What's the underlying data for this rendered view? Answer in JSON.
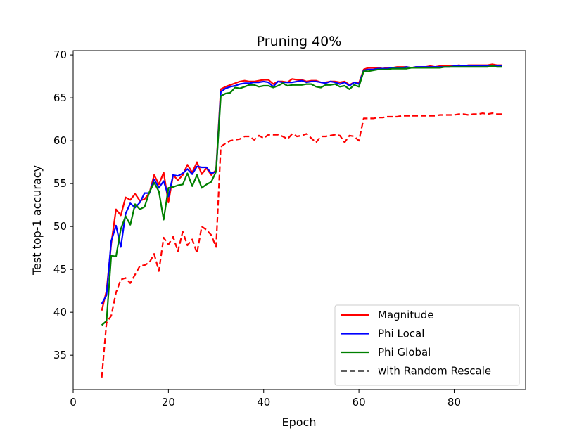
{
  "chart_data": {
    "type": "line",
    "title": "Pruning 40%",
    "xlabel": "Epoch",
    "ylabel": "Test top-1 accuracy",
    "xlim": [
      0,
      95
    ],
    "ylim": [
      31,
      70.5
    ],
    "xticks": [
      0,
      20,
      40,
      60,
      80
    ],
    "yticks": [
      35,
      40,
      45,
      50,
      55,
      60,
      65,
      70
    ],
    "grid": false,
    "legend_position": "lower-right",
    "legend": [
      {
        "label": "Magnitude",
        "color": "#ff0000",
        "style": "solid"
      },
      {
        "label": "Phi Local",
        "color": "#0000ff",
        "style": "solid"
      },
      {
        "label": "Phi Global",
        "color": "#008000",
        "style": "solid"
      },
      {
        "label": "with Random Rescale",
        "color": "#000000",
        "style": "dashed"
      }
    ],
    "x": [
      6,
      7,
      8,
      9,
      10,
      11,
      12,
      13,
      14,
      15,
      16,
      17,
      18,
      19,
      20,
      21,
      22,
      23,
      24,
      25,
      26,
      27,
      28,
      29,
      30,
      31,
      32,
      33,
      34,
      35,
      36,
      37,
      38,
      39,
      40,
      41,
      42,
      43,
      44,
      45,
      46,
      47,
      48,
      49,
      50,
      51,
      52,
      53,
      54,
      55,
      56,
      57,
      58,
      59,
      60,
      61,
      62,
      63,
      64,
      65,
      66,
      67,
      68,
      69,
      70,
      71,
      72,
      73,
      74,
      75,
      76,
      77,
      78,
      79,
      80,
      81,
      82,
      83,
      84,
      85,
      86,
      87,
      88,
      89,
      90
    ],
    "series": [
      {
        "name": "Magnitude",
        "color": "#ff0000",
        "style": "solid",
        "values": [
          40.2,
          42.5,
          48.0,
          52.0,
          51.3,
          53.4,
          53.1,
          53.8,
          53.0,
          53.2,
          53.9,
          56.0,
          54.9,
          56.3,
          52.8,
          56.0,
          55.4,
          56.0,
          57.2,
          56.3,
          57.5,
          56.1,
          56.8,
          56.0,
          56.6,
          66.0,
          66.3,
          66.5,
          66.7,
          66.9,
          67.0,
          66.9,
          66.9,
          67.0,
          67.1,
          67.1,
          66.6,
          66.9,
          66.9,
          66.8,
          67.2,
          67.1,
          67.1,
          66.9,
          67.0,
          67.0,
          66.8,
          66.8,
          66.9,
          66.9,
          66.8,
          66.9,
          66.5,
          66.8,
          66.7,
          68.3,
          68.5,
          68.5,
          68.5,
          68.4,
          68.5,
          68.5,
          68.6,
          68.6,
          68.6,
          68.5,
          68.6,
          68.6,
          68.6,
          68.7,
          68.6,
          68.7,
          68.7,
          68.7,
          68.7,
          68.8,
          68.7,
          68.8,
          68.8,
          68.8,
          68.8,
          68.8,
          68.9,
          68.8,
          68.8
        ]
      },
      {
        "name": "Phi Local",
        "color": "#0000ff",
        "style": "solid",
        "values": [
          41.0,
          42.0,
          48.3,
          50.1,
          47.6,
          51.5,
          52.7,
          52.2,
          52.8,
          53.9,
          53.9,
          55.5,
          54.5,
          55.3,
          53.5,
          56.0,
          55.9,
          56.2,
          56.7,
          56.1,
          57.0,
          56.9,
          56.9,
          56.2,
          56.4,
          65.7,
          66.1,
          66.3,
          66.4,
          66.6,
          66.7,
          66.7,
          66.8,
          66.8,
          66.9,
          66.8,
          66.3,
          66.9,
          66.8,
          66.8,
          66.8,
          66.9,
          67.0,
          66.8,
          66.9,
          66.9,
          66.8,
          66.7,
          66.9,
          66.8,
          66.6,
          66.8,
          66.4,
          66.8,
          66.6,
          68.2,
          68.3,
          68.3,
          68.4,
          68.4,
          68.4,
          68.5,
          68.5,
          68.5,
          68.6,
          68.5,
          68.6,
          68.6,
          68.6,
          68.6,
          68.6,
          68.6,
          68.6,
          68.6,
          68.7,
          68.7,
          68.7,
          68.7,
          68.7,
          68.7,
          68.7,
          68.7,
          68.7,
          68.7,
          68.7
        ]
      },
      {
        "name": "Phi Global",
        "color": "#008000",
        "style": "solid",
        "values": [
          38.5,
          39.0,
          46.6,
          46.5,
          49.7,
          51.2,
          50.2,
          52.6,
          52.0,
          52.3,
          54.0,
          55.1,
          54.1,
          50.8,
          54.5,
          54.6,
          54.8,
          54.9,
          56.2,
          54.7,
          56.0,
          54.5,
          54.9,
          55.2,
          56.4,
          65.2,
          65.5,
          65.6,
          66.2,
          66.1,
          66.3,
          66.5,
          66.5,
          66.3,
          66.4,
          66.4,
          66.2,
          66.4,
          66.7,
          66.4,
          66.5,
          66.5,
          66.5,
          66.6,
          66.6,
          66.3,
          66.2,
          66.5,
          66.5,
          66.6,
          66.3,
          66.4,
          66.0,
          66.5,
          66.3,
          68.1,
          68.1,
          68.2,
          68.3,
          68.3,
          68.3,
          68.4,
          68.4,
          68.4,
          68.4,
          68.5,
          68.5,
          68.5,
          68.5,
          68.5,
          68.5,
          68.5,
          68.6,
          68.6,
          68.6,
          68.6,
          68.6,
          68.6,
          68.6,
          68.6,
          68.6,
          68.6,
          68.7,
          68.6,
          68.6
        ]
      },
      {
        "name": "with Random Rescale",
        "color": "#ff0000",
        "style": "dashed",
        "values": [
          32.4,
          38.8,
          39.6,
          42.3,
          43.8,
          44.0,
          43.4,
          44.4,
          45.4,
          45.5,
          45.8,
          46.8,
          44.8,
          48.7,
          47.9,
          48.8,
          47.1,
          49.4,
          47.8,
          48.5,
          46.9,
          50.0,
          49.6,
          49.0,
          47.6,
          59.3,
          59.7,
          60.0,
          60.1,
          60.2,
          60.5,
          60.5,
          60.1,
          60.6,
          60.3,
          60.7,
          60.7,
          60.7,
          60.5,
          60.2,
          60.8,
          60.5,
          60.6,
          60.8,
          60.3,
          59.8,
          60.5,
          60.5,
          60.6,
          60.7,
          60.6,
          59.8,
          60.6,
          60.5,
          60.0,
          62.6,
          62.6,
          62.6,
          62.7,
          62.7,
          62.8,
          62.8,
          62.8,
          62.9,
          62.9,
          62.9,
          62.9,
          62.9,
          62.9,
          62.9,
          62.9,
          63.0,
          63.0,
          63.0,
          63.0,
          63.1,
          63.1,
          63.0,
          63.1,
          63.1,
          63.2,
          63.1,
          63.2,
          63.1,
          63.1
        ]
      }
    ]
  }
}
